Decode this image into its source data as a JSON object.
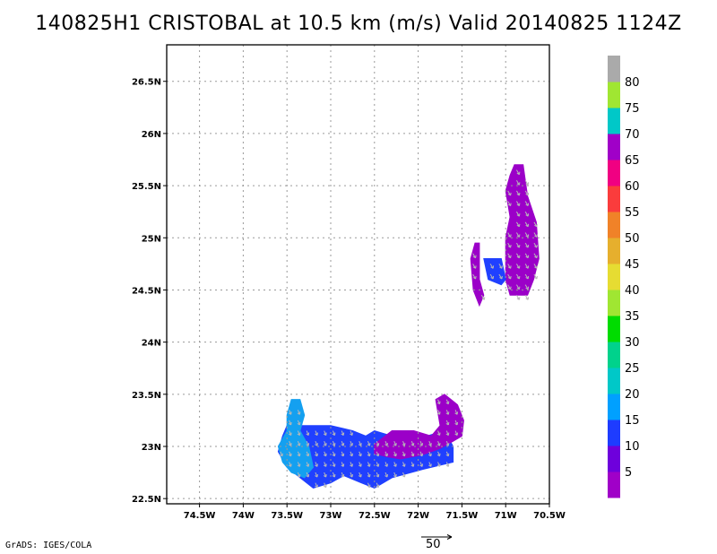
{
  "title": "140825H1 CRISTOBAL at 10.5 km (m/s) Valid 20140825 1124Z",
  "credit": "GrADS: IGES/COLA",
  "reference_vector_label": "50",
  "chart_data": {
    "type": "heatmap",
    "variable": "wind speed with wind vectors",
    "units": "m/s",
    "xlim": [
      -74.875,
      -70.5
    ],
    "ylim": [
      22.45,
      26.85
    ],
    "x_ticks": [
      -74.5,
      -74,
      -73.5,
      -73,
      -72.5,
      -72,
      -71.5,
      -71,
      -70.5
    ],
    "x_tick_labels": [
      "74.5W",
      "74W",
      "73.5W",
      "73W",
      "72.5W",
      "72W",
      "71.5W",
      "71W",
      "70.5W"
    ],
    "y_ticks": [
      22.5,
      23,
      23.5,
      24,
      24.5,
      25,
      25.5,
      26,
      26.5
    ],
    "y_tick_labels": [
      "22.5N",
      "23N",
      "23.5N",
      "24N",
      "24.5N",
      "25N",
      "25.5N",
      "26N",
      "26.5N"
    ],
    "grid": true,
    "colorbar": {
      "labels": [
        "5",
        "10",
        "15",
        "20",
        "25",
        "30",
        "35",
        "40",
        "45",
        "50",
        "55",
        "60",
        "65",
        "70",
        "75",
        "80"
      ],
      "colors": [
        "#a000c8",
        "#6e00dc",
        "#1e3cff",
        "#00a0ff",
        "#00c8c8",
        "#00d28c",
        "#00dc00",
        "#a0e632",
        "#e6dc32",
        "#e6af2d",
        "#f08228",
        "#fa3c3c",
        "#f00082",
        "#a000c8",
        "#00c8c8",
        "#a0e632",
        "#aaaaaa"
      ]
    },
    "regions": [
      {
        "name": "northeast",
        "color": "#9b00c8",
        "polygon": [
          [
            -70.9,
            25.7
          ],
          [
            -70.8,
            25.7
          ],
          [
            -70.75,
            25.4
          ],
          [
            -70.65,
            25.15
          ],
          [
            -70.62,
            24.8
          ],
          [
            -70.68,
            24.6
          ],
          [
            -70.75,
            24.45
          ],
          [
            -70.95,
            24.45
          ],
          [
            -71.0,
            24.6
          ],
          [
            -71.0,
            25.0
          ],
          [
            -70.95,
            25.2
          ],
          [
            -71.0,
            25.45
          ],
          [
            -70.95,
            25.6
          ]
        ]
      },
      {
        "name": "northeast-blue",
        "color": "#2040ff",
        "polygon": [
          [
            -71.25,
            24.8
          ],
          [
            -71.05,
            24.8
          ],
          [
            -71.0,
            24.6
          ],
          [
            -71.05,
            24.55
          ],
          [
            -71.2,
            24.6
          ]
        ]
      },
      {
        "name": "northeast-west-strip",
        "color": "#9b00c8",
        "polygon": [
          [
            -71.35,
            24.95
          ],
          [
            -71.3,
            24.95
          ],
          [
            -71.3,
            24.6
          ],
          [
            -71.25,
            24.45
          ],
          [
            -71.3,
            24.35
          ],
          [
            -71.37,
            24.5
          ],
          [
            -71.4,
            24.8
          ]
        ]
      },
      {
        "name": "southwest-blue",
        "color": "#2040ff",
        "polygon": [
          [
            -73.55,
            23.1
          ],
          [
            -73.45,
            23.3
          ],
          [
            -73.35,
            23.2
          ],
          [
            -73.2,
            23.2
          ],
          [
            -73.0,
            23.2
          ],
          [
            -72.75,
            23.15
          ],
          [
            -72.6,
            23.1
          ],
          [
            -72.5,
            23.15
          ],
          [
            -72.1,
            23.05
          ],
          [
            -71.7,
            23.15
          ],
          [
            -71.6,
            23.0
          ],
          [
            -71.6,
            22.85
          ],
          [
            -71.95,
            22.78
          ],
          [
            -72.3,
            22.7
          ],
          [
            -72.5,
            22.6
          ],
          [
            -72.65,
            22.65
          ],
          [
            -72.85,
            22.72
          ],
          [
            -73.0,
            22.65
          ],
          [
            -73.2,
            22.6
          ],
          [
            -73.35,
            22.7
          ],
          [
            -73.5,
            22.8
          ],
          [
            -73.6,
            22.95
          ]
        ]
      },
      {
        "name": "southwest-lightblue",
        "color": "#14a0f0",
        "polygon": [
          [
            -73.45,
            23.45
          ],
          [
            -73.35,
            23.45
          ],
          [
            -73.3,
            23.3
          ],
          [
            -73.35,
            23.15
          ],
          [
            -73.25,
            23.0
          ],
          [
            -73.2,
            22.8
          ],
          [
            -73.3,
            22.7
          ],
          [
            -73.45,
            22.75
          ],
          [
            -73.55,
            22.85
          ],
          [
            -73.6,
            23.0
          ],
          [
            -73.5,
            23.15
          ],
          [
            -73.5,
            23.3
          ]
        ]
      },
      {
        "name": "southeast-purple",
        "color": "#9b00c8",
        "polygon": [
          [
            -72.5,
            23.02
          ],
          [
            -72.3,
            23.15
          ],
          [
            -72.05,
            23.15
          ],
          [
            -71.85,
            23.1
          ],
          [
            -71.75,
            23.2
          ],
          [
            -71.8,
            23.45
          ],
          [
            -71.7,
            23.5
          ],
          [
            -71.55,
            23.4
          ],
          [
            -71.48,
            23.25
          ],
          [
            -71.5,
            23.1
          ],
          [
            -71.6,
            23.05
          ],
          [
            -71.75,
            22.98
          ],
          [
            -71.95,
            22.92
          ],
          [
            -72.2,
            22.88
          ],
          [
            -72.35,
            22.9
          ],
          [
            -72.5,
            22.93
          ]
        ]
      }
    ]
  }
}
